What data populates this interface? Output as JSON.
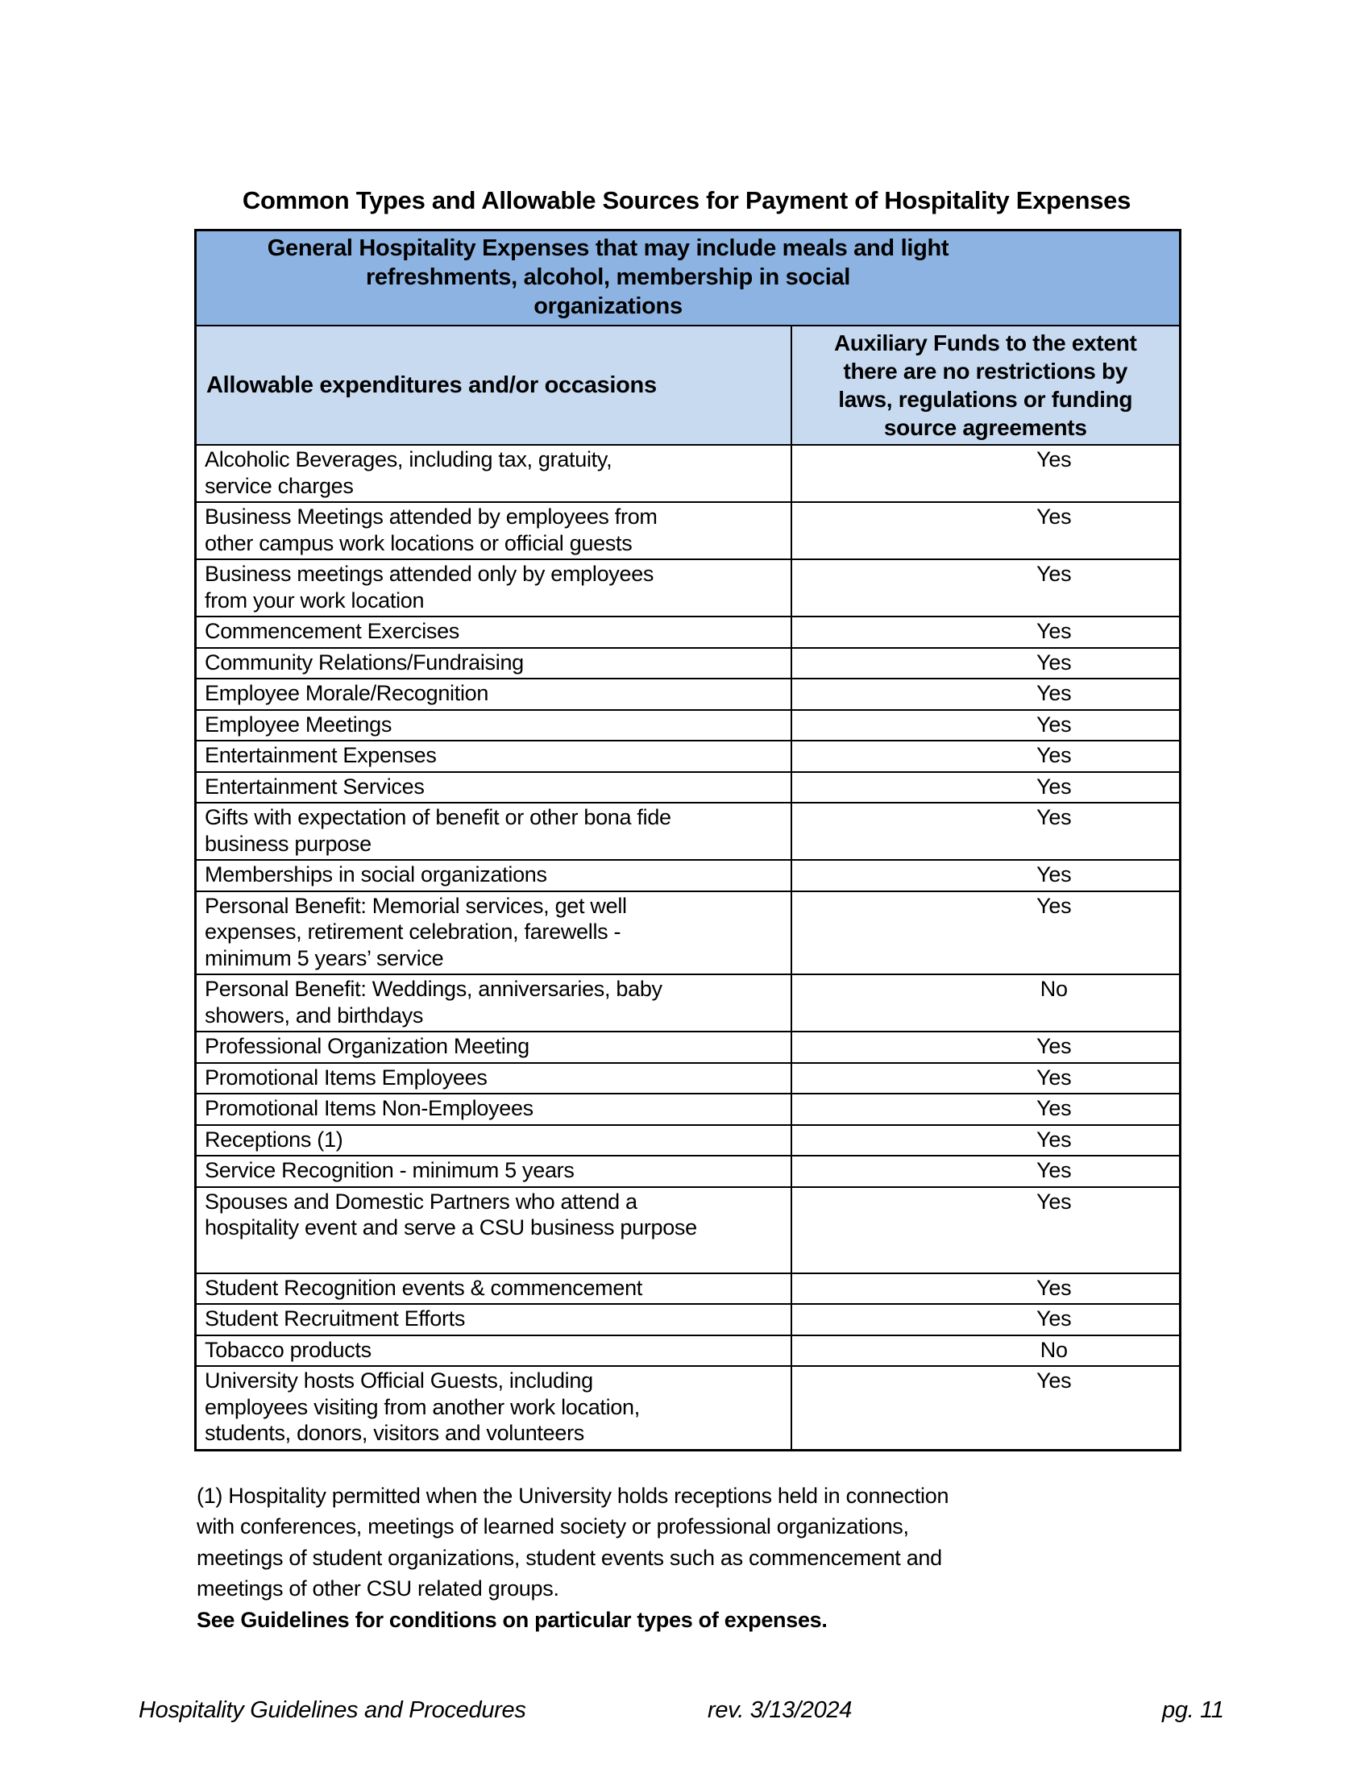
{
  "title": "Common Types and Allowable Sources for Payment of Hospitality Expenses",
  "table": {
    "group_header": "General Hospitality Expenses that may include meals and light\nrefreshments, alcohol, membership in social\norganizations",
    "columns": {
      "expenditures": "Allowable expenditures and/or occasions",
      "auxiliary": "Auxiliary Funds to the extent\nthere are no restrictions by\nlaws, regulations or funding\nsource agreements"
    },
    "rows": [
      {
        "expenditure": "Alcoholic Beverages, including tax, gratuity,\nservice charges",
        "allowed": "Yes"
      },
      {
        "expenditure": "Business Meetings attended by employees from\nother campus work locations or official guests",
        "allowed": "Yes"
      },
      {
        "expenditure": "Business meetings attended only by employees\nfrom your work location",
        "allowed": "Yes"
      },
      {
        "expenditure": "Commencement Exercises",
        "allowed": "Yes"
      },
      {
        "expenditure": "Community Relations/Fundraising",
        "allowed": "Yes"
      },
      {
        "expenditure": "Employee Morale/Recognition",
        "allowed": "Yes"
      },
      {
        "expenditure": "Employee Meetings",
        "allowed": "Yes"
      },
      {
        "expenditure": "Entertainment Expenses",
        "allowed": "Yes"
      },
      {
        "expenditure": "Entertainment Services",
        "allowed": "Yes"
      },
      {
        "expenditure": "Gifts with expectation of benefit or other bona fide\nbusiness purpose",
        "allowed": "Yes"
      },
      {
        "expenditure": "Memberships in social organizations",
        "allowed": "Yes"
      },
      {
        "expenditure": "Personal Benefit: Memorial services, get well\nexpenses, retirement celebration, farewells -\nminimum 5 years’ service",
        "allowed": "Yes"
      },
      {
        "expenditure": "Personal Benefit: Weddings, anniversaries, baby\nshowers, and birthdays",
        "allowed": "No"
      },
      {
        "expenditure": "Professional Organization Meeting",
        "allowed": "Yes"
      },
      {
        "expenditure": "Promotional Items Employees",
        "allowed": "Yes"
      },
      {
        "expenditure": "Promotional Items Non-Employees",
        "allowed": "Yes"
      },
      {
        "expenditure": "Receptions (1)",
        "allowed": "Yes"
      },
      {
        "expenditure": "Service Recognition - minimum 5 years",
        "allowed": "Yes"
      },
      {
        "expenditure": "Spouses and Domestic Partners who attend a\nhospitality event and serve a CSU business purpose",
        "allowed": "Yes",
        "tall": true
      },
      {
        "expenditure": "Student Recognition events & commencement",
        "allowed": "Yes"
      },
      {
        "expenditure": "Student Recruitment Efforts",
        "allowed": "Yes"
      },
      {
        "expenditure": "Tobacco products",
        "allowed": "No"
      },
      {
        "expenditure": "University hosts Official Guests, including\nemployees visiting from another work location,\nstudents, donors, visitors and volunteers",
        "allowed": "Yes"
      }
    ]
  },
  "footnote": {
    "text": "(1) Hospitality permitted when the University holds receptions held in connection\nwith conferences, meetings of learned society or professional organizations,\nmeetings of student organizations, student events such as commencement and\nmeetings of other CSU related groups.",
    "guidelines": "See Guidelines for conditions on particular types of expenses."
  },
  "footer": {
    "doc_title": "Hospitality Guidelines and Procedures",
    "revision": "rev. 3/13/2024",
    "page_number": "pg. 11"
  },
  "colors": {
    "header_dark_blue": "#8DB3E2",
    "header_light_blue": "#C7DAF0",
    "border": "#000000",
    "page_background": "#FFFFFF"
  }
}
